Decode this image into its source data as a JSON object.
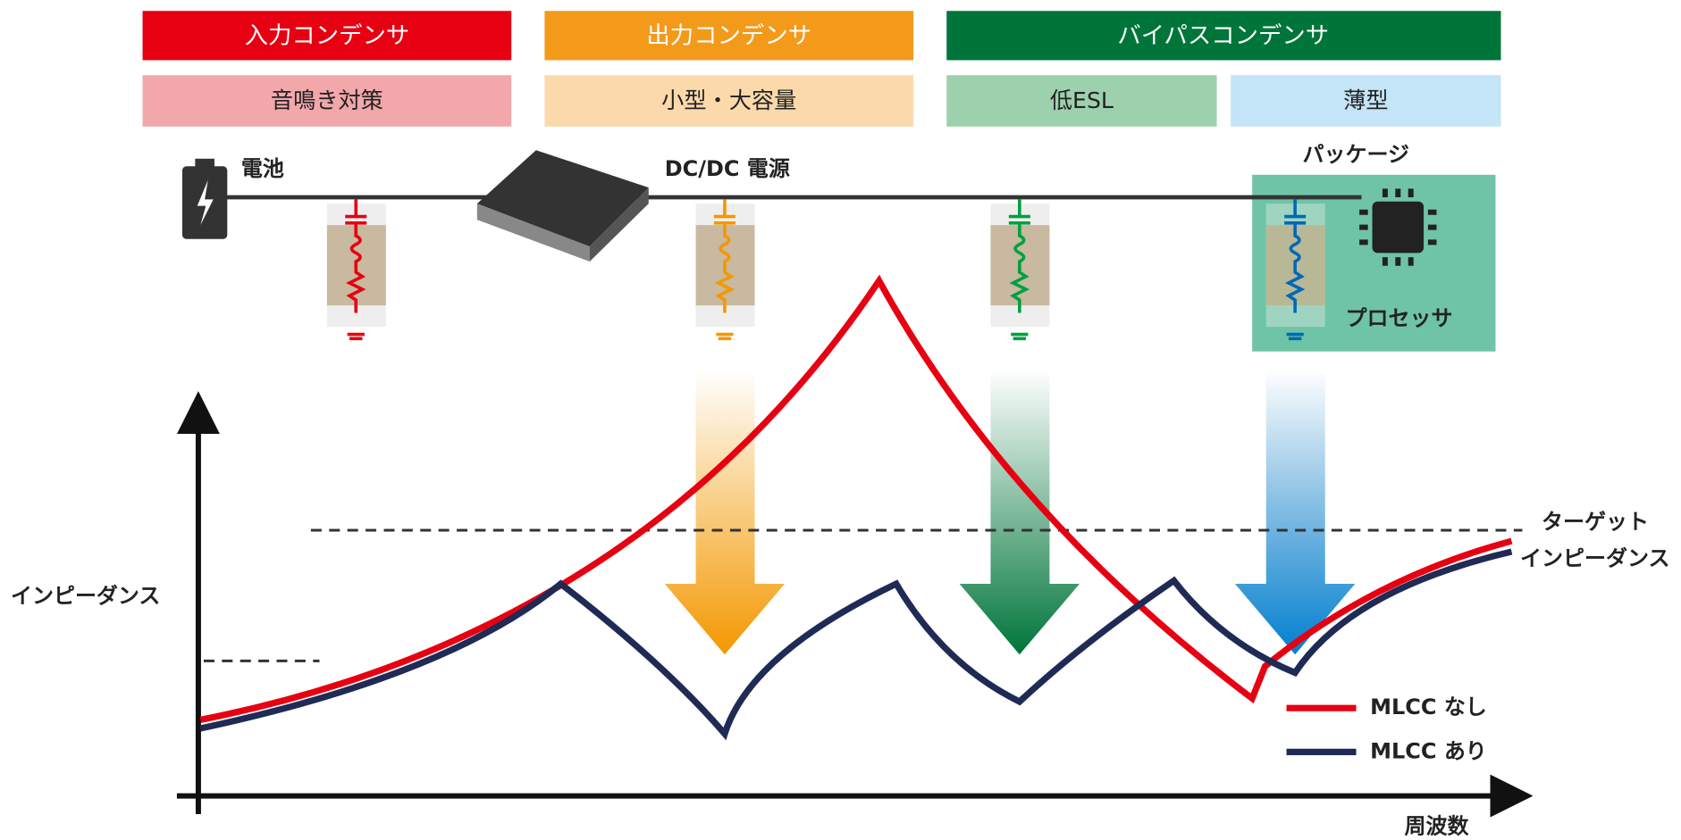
{
  "headers": [
    "入力コンデンサ",
    "出力コンデンサ",
    "バイパスコンデンサ"
  ],
  "features": [
    "音鳴き対策",
    "小型・大容量",
    "低ESL",
    "薄型"
  ],
  "labels": {
    "battery": "電池",
    "dcdc": "DC/DC 電源",
    "package": "パッケージ",
    "processor": "プロセッサ"
  },
  "axis": {
    "y": "インピーダンス",
    "x": "周波数"
  },
  "target": [
    "ターゲット",
    "インピーダンス"
  ],
  "legend": [
    "MLCC なし",
    "MLCC あり"
  ]
}
